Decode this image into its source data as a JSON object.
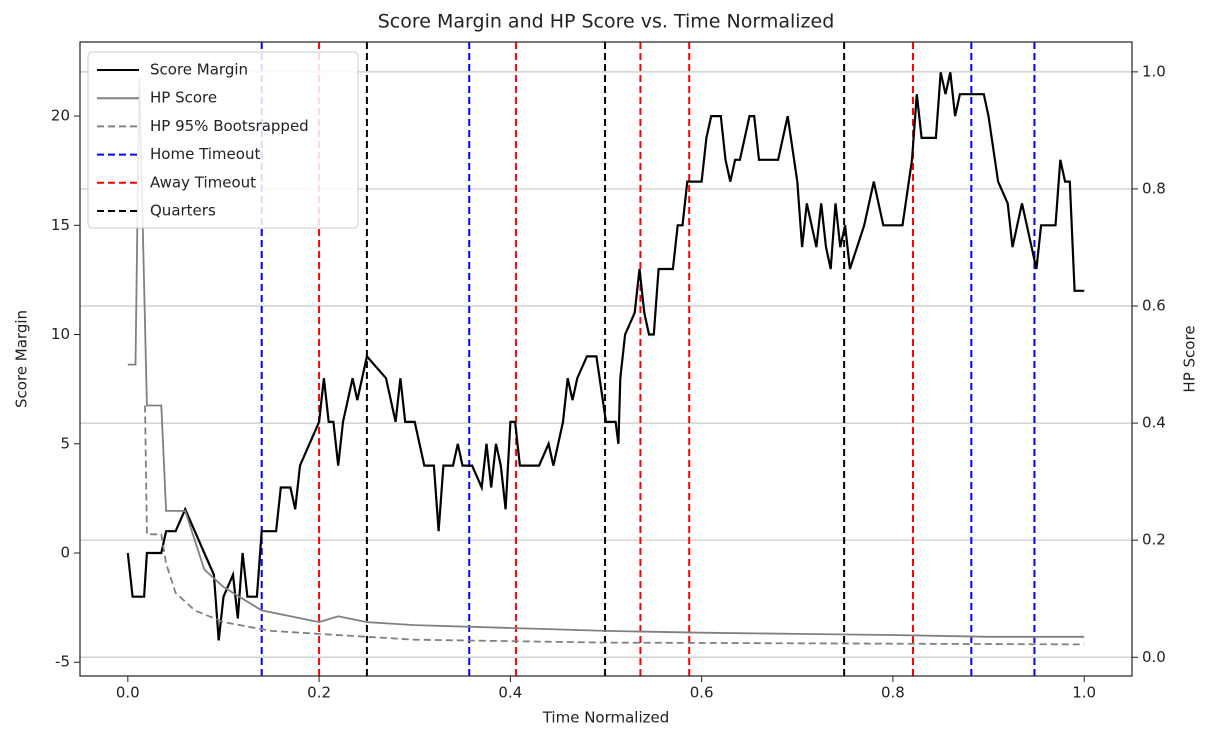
{
  "chart_data": {
    "type": "line",
    "title": "Score Margin and HP Score vs. Time Normalized",
    "x_label": "Time Normalized",
    "y_label": "Score Margin",
    "y2_label": "HP Score",
    "xlim": [
      -0.05,
      1.05
    ],
    "xticks": [
      {
        "value": 0,
        "label": "0.0"
      },
      0.2,
      0.4,
      0.6,
      0.8,
      {
        "value": 1,
        "label": "1.0"
      }
    ],
    "ylim": [
      -5.63,
      23.39
    ],
    "yticks": [
      -5,
      0,
      5,
      10,
      15,
      20
    ],
    "y2lim": [
      -0.032,
      1.051
    ],
    "y2ticks": [
      {
        "value": 0,
        "label": "0.0"
      },
      0.2,
      0.4,
      0.6,
      0.8,
      {
        "value": 1,
        "label": "1.0"
      }
    ],
    "grid": "y2",
    "legend": "upper left",
    "series": [
      {
        "name": "Score Margin",
        "color": "#000000",
        "dash": "solid",
        "axis": "y",
        "x": [
          0,
          0.005,
          0.017,
          0.02,
          0.035,
          0.04,
          0.05,
          0.06,
          0.07,
          0.08,
          0.09,
          0.095,
          0.1,
          0.11,
          0.115,
          0.12,
          0.125,
          0.135,
          0.14,
          0.155,
          0.16,
          0.17,
          0.175,
          0.18,
          0.19,
          0.2,
          0.205,
          0.21,
          0.215,
          0.22,
          0.225,
          0.23,
          0.235,
          0.24,
          0.245,
          0.25,
          0.27,
          0.28,
          0.285,
          0.29,
          0.3,
          0.31,
          0.32,
          0.325,
          0.33,
          0.34,
          0.345,
          0.35,
          0.36,
          0.37,
          0.375,
          0.38,
          0.385,
          0.39,
          0.395,
          0.4,
          0.405,
          0.41,
          0.43,
          0.44,
          0.445,
          0.455,
          0.46,
          0.465,
          0.47,
          0.48,
          0.49,
          0.5,
          0.51,
          0.513,
          0.515,
          0.52,
          0.53,
          0.535,
          0.54,
          0.545,
          0.55,
          0.555,
          0.57,
          0.575,
          0.58,
          0.585,
          0.6,
          0.605,
          0.61,
          0.62,
          0.625,
          0.63,
          0.635,
          0.64,
          0.65,
          0.655,
          0.66,
          0.68,
          0.69,
          0.7,
          0.705,
          0.71,
          0.715,
          0.72,
          0.725,
          0.73,
          0.735,
          0.74,
          0.745,
          0.75,
          0.755,
          0.77,
          0.78,
          0.79,
          0.81,
          0.82,
          0.825,
          0.83,
          0.845,
          0.85,
          0.855,
          0.86,
          0.865,
          0.87,
          0.895,
          0.9,
          0.91,
          0.92,
          0.925,
          0.93,
          0.935,
          0.945,
          0.95,
          0.955,
          0.97,
          0.975,
          0.98,
          0.985,
          0.99,
          1
        ],
        "values": [
          0,
          -2,
          -2,
          0,
          0,
          1,
          1,
          2,
          1,
          0,
          -1,
          -4,
          -2,
          -1,
          -3,
          0,
          -2,
          -2,
          1,
          1,
          3,
          3,
          2,
          4,
          5,
          6,
          8,
          6,
          6,
          4,
          6,
          7,
          8,
          7,
          8,
          9,
          8,
          6,
          8,
          6,
          6,
          4,
          4,
          1,
          4,
          4,
          5,
          4,
          4,
          3,
          5,
          3,
          5,
          4,
          2,
          6,
          6,
          4,
          4,
          5,
          4,
          6,
          8,
          7,
          8,
          9,
          9,
          6,
          6,
          5,
          8,
          10,
          11,
          13,
          11,
          10,
          10,
          13,
          13,
          15,
          15,
          17,
          17,
          19,
          20,
          20,
          18,
          17,
          18,
          18,
          20,
          20,
          18,
          18,
          20,
          17,
          14,
          16,
          15,
          14,
          16,
          14,
          13,
          16,
          14,
          15,
          13,
          15,
          17,
          15,
          15,
          18,
          21,
          19,
          19,
          22,
          21,
          22,
          20,
          21,
          21,
          20,
          17,
          16,
          14,
          15,
          16,
          14,
          13,
          15,
          15,
          18,
          17,
          17,
          12,
          12
        ]
      },
      {
        "name": "HP Score",
        "color": "#808080",
        "dash": "solid",
        "axis": "y2",
        "x": [
          0,
          0.008,
          0.012,
          0.02,
          0.035,
          0.04,
          0.06,
          0.07,
          0.08,
          0.1,
          0.14,
          0.2,
          0.22,
          0.25,
          0.3,
          0.4,
          0.5,
          0.6,
          0.7,
          0.8,
          0.9,
          1
        ],
        "values": [
          0.5,
          0.5,
          0.99,
          0.43,
          0.43,
          0.25,
          0.25,
          0.2,
          0.15,
          0.12,
          0.08,
          0.06,
          0.07,
          0.06,
          0.055,
          0.05,
          0.045,
          0.042,
          0.04,
          0.038,
          0.035,
          0.035
        ]
      },
      {
        "name": "HP 95% Bootsrapped",
        "color": "#808080",
        "dash": "dashed",
        "axis": "y2",
        "x": [
          0.018,
          0.02,
          0.035,
          0.04,
          0.05,
          0.07,
          0.1,
          0.15,
          0.2,
          0.3,
          0.5,
          1
        ],
        "values": [
          0.43,
          0.21,
          0.21,
          0.16,
          0.11,
          0.08,
          0.06,
          0.045,
          0.04,
          0.03,
          0.025,
          0.022
        ]
      }
    ],
    "vlines": [
      {
        "name": "Home Timeout",
        "color": "#0000ff",
        "x": [
          0.14,
          0.357,
          0.882,
          0.948
        ]
      },
      {
        "name": "Away Timeout",
        "color": "#ff0000",
        "x": [
          0.2,
          0.406,
          0.536,
          0.587,
          0.821
        ]
      },
      {
        "name": "Quarters",
        "color": "#000000",
        "x": [
          0.25,
          0.499,
          0.749
        ]
      }
    ]
  }
}
